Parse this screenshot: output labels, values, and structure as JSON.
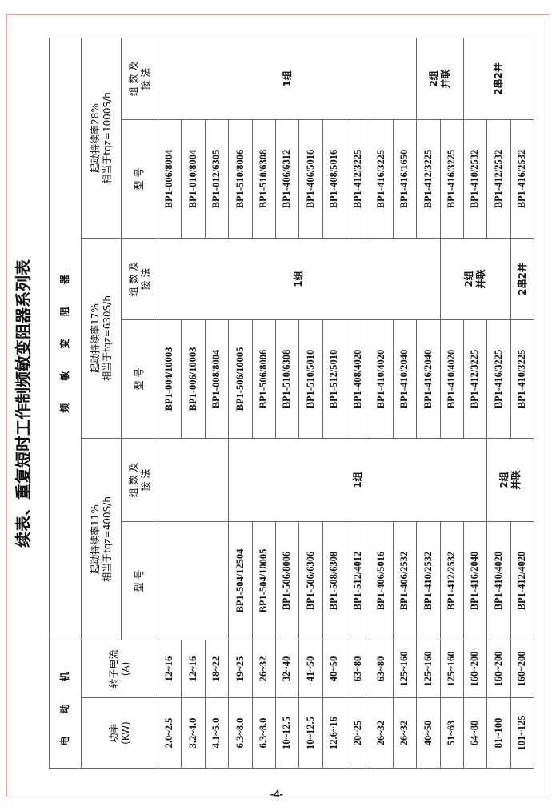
{
  "title": "续表、重复短时工作制频敏变阻器系列表",
  "page_number": "-4-",
  "header": {
    "motor": "电 动 机",
    "resistor": "频 敏 变 阻 器",
    "power": "功率\n(KW)",
    "current": "转子电流\n(A)",
    "model": "型    号",
    "groups": "组 数 及\n接 法"
  },
  "motor": {
    "power": [
      "2.0~2.5",
      "3.2~4.0",
      "4.1~5.0",
      "6.3~8.0",
      "6.3~8.0",
      "10~12.5",
      "10~12.5",
      "12.6~16",
      "20~25",
      "26~32",
      "26~32",
      "40~50",
      "51~63",
      "64~80",
      "81~100",
      "101~125"
    ],
    "current": [
      "12~16",
      "12~16",
      "18~22",
      "19~25",
      "26~32",
      "32~40",
      "41~50",
      "40~50",
      "63~80",
      "63~80",
      "125~160",
      "125~160",
      "125~160",
      "160~200",
      "160~200",
      "160~200"
    ]
  },
  "sections": [
    {
      "label": "起动持续率11%\n相当于tqz=400S/h",
      "blank_rows": 3,
      "models": [
        "BP1-504/12504",
        "BP1-504/10005",
        "BP1-506/8006",
        "BP1-506/6306",
        "BP1-508/6308",
        "BP1-512/4012",
        "BP1-406/5016",
        "BP1-406/2532",
        "BP1-410/2532",
        "BP1-412/2532",
        "BP1-416/2040",
        "BP1-410/4020",
        "BP1-412/4020"
      ],
      "groups": [
        {
          "text": "",
          "rows": 3
        },
        {
          "text": "1组",
          "rows": 11
        },
        {
          "text": "2组\n并联",
          "rows": 2
        }
      ]
    },
    {
      "label": "起动持续率17%\n相当于tqz=630S/h",
      "blank_rows": 0,
      "models": [
        "BP1-004/10003",
        "BP1-006/10003",
        "BP1-008/8004",
        "BP1-506/10005",
        "BP1-506/8006",
        "BP1-510/6308",
        "BP1-510/5010",
        "BP1-512/5010",
        "BP1-408/4020",
        "BP1-410/4020",
        "BP1-410/2040",
        "BP1-416/2040",
        "BP1-410/4020",
        "BP1-412/3225",
        "BP1-416/3225",
        "BP1-410/3225"
      ],
      "groups": [
        {
          "text": "1组",
          "rows": 12
        },
        {
          "text": "2组\n并联",
          "rows": 3
        },
        {
          "text": "2串2并",
          "rows": 1
        }
      ]
    },
    {
      "label": "起动持续率28%\n相当于tqz=1000S/h",
      "blank_rows": 0,
      "models": [
        "BP1-006/8004",
        "BP1-010/8004",
        "BP1-012/6305",
        "BP1-510/8006",
        "BP1-510/6308",
        "BP1-406/6312",
        "BP1-406/5016",
        "BP1-408/5016",
        "BP1-412/3225",
        "BP1-416/3225",
        "BP1-416/1650",
        "BP1-412/3225",
        "BP1-416/3225",
        "BP1-410/2532",
        "BP1-412/2532",
        "BP1-416/2532"
      ],
      "groups": [
        {
          "text": "1组",
          "rows": 11
        },
        {
          "text": "2组\n并联",
          "rows": 2
        },
        {
          "text": "2串2并",
          "rows": 3
        }
      ]
    }
  ]
}
